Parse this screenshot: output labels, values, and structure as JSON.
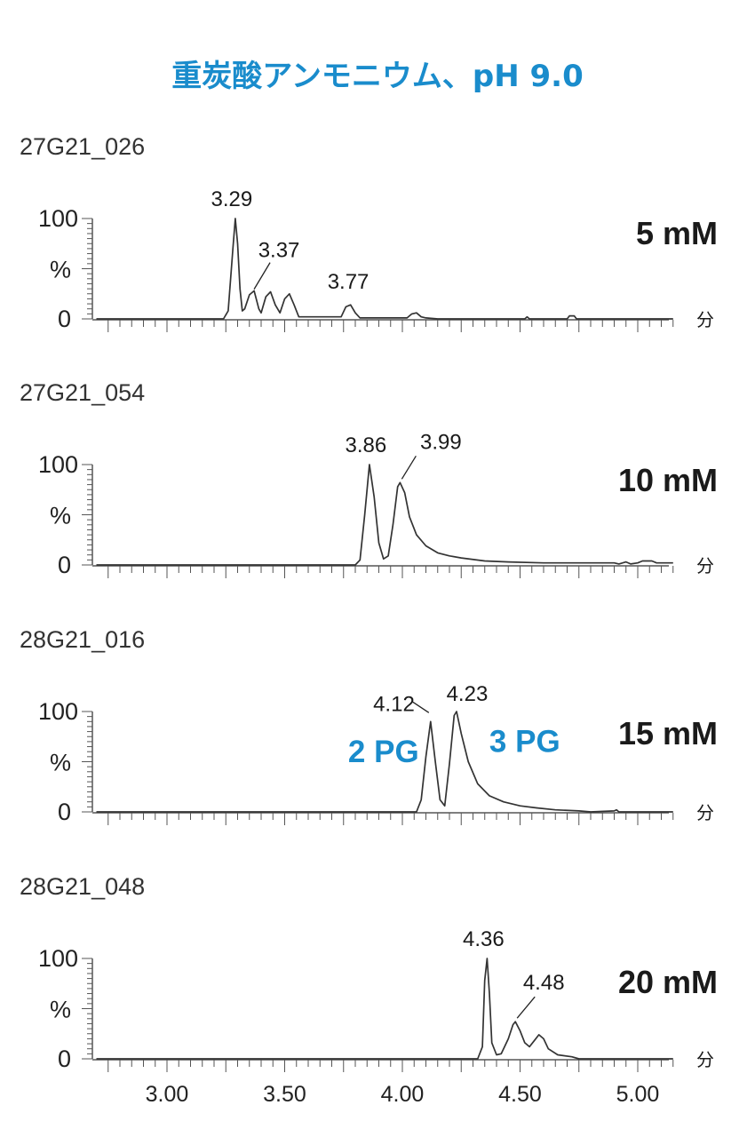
{
  "title": "重炭酸アンモニウム、pH 9.0",
  "chart_data": {
    "type": "line",
    "x_unit_label": "分",
    "x_ticks": [
      "3.00",
      "3.50",
      "4.00",
      "4.50",
      "5.00"
    ],
    "y_tick_labels": [
      "100",
      "%",
      "0"
    ],
    "xlim": [
      2.7,
      5.15
    ],
    "ylim": [
      0,
      100
    ],
    "panels": [
      {
        "sample_id": "27G21_026",
        "condition": "5 mM",
        "peak_labels": [
          {
            "text": "3.29",
            "x": 3.29,
            "y": 100
          },
          {
            "text": "3.37",
            "x": 3.37,
            "y": 26
          },
          {
            "text": "3.77",
            "x": 3.77,
            "y": 14
          }
        ],
        "annotations": [],
        "trace": [
          [
            2.7,
            0
          ],
          [
            3.24,
            0
          ],
          [
            3.26,
            8
          ],
          [
            3.28,
            70
          ],
          [
            3.29,
            100
          ],
          [
            3.3,
            75
          ],
          [
            3.31,
            30
          ],
          [
            3.32,
            8
          ],
          [
            3.33,
            10
          ],
          [
            3.35,
            24
          ],
          [
            3.37,
            28
          ],
          [
            3.39,
            10
          ],
          [
            3.4,
            6
          ],
          [
            3.42,
            22
          ],
          [
            3.44,
            27
          ],
          [
            3.46,
            14
          ],
          [
            3.48,
            6
          ],
          [
            3.5,
            20
          ],
          [
            3.52,
            25
          ],
          [
            3.54,
            14
          ],
          [
            3.56,
            2
          ],
          [
            3.74,
            2
          ],
          [
            3.76,
            12
          ],
          [
            3.78,
            14
          ],
          [
            3.8,
            6
          ],
          [
            3.82,
            1
          ],
          [
            4.02,
            1
          ],
          [
            4.04,
            5
          ],
          [
            4.06,
            6
          ],
          [
            4.08,
            2
          ],
          [
            4.1,
            1
          ],
          [
            4.15,
            0
          ],
          [
            4.52,
            0
          ],
          [
            4.53,
            2
          ],
          [
            4.54,
            0
          ],
          [
            4.7,
            0
          ],
          [
            4.71,
            3
          ],
          [
            4.73,
            3
          ],
          [
            4.74,
            0
          ],
          [
            5.15,
            0
          ]
        ]
      },
      {
        "sample_id": "27G21_054",
        "condition": "10 mM",
        "peak_labels": [
          {
            "text": "3.86",
            "x": 3.86,
            "y": 100
          },
          {
            "text": "3.99",
            "x": 3.99,
            "y": 82
          }
        ],
        "annotations": [],
        "trace": [
          [
            2.7,
            0
          ],
          [
            3.8,
            0
          ],
          [
            3.82,
            5
          ],
          [
            3.84,
            50
          ],
          [
            3.86,
            100
          ],
          [
            3.88,
            68
          ],
          [
            3.9,
            22
          ],
          [
            3.92,
            6
          ],
          [
            3.94,
            9
          ],
          [
            3.96,
            40
          ],
          [
            3.98,
            78
          ],
          [
            3.99,
            82
          ],
          [
            4.01,
            72
          ],
          [
            4.03,
            48
          ],
          [
            4.06,
            30
          ],
          [
            4.1,
            19
          ],
          [
            4.15,
            12
          ],
          [
            4.2,
            9
          ],
          [
            4.25,
            7
          ],
          [
            4.35,
            4
          ],
          [
            4.45,
            3
          ],
          [
            4.6,
            2
          ],
          [
            4.8,
            2
          ],
          [
            4.9,
            2
          ],
          [
            4.92,
            1
          ],
          [
            4.95,
            3
          ],
          [
            4.97,
            1
          ],
          [
            5.0,
            2
          ],
          [
            5.02,
            4
          ],
          [
            5.06,
            4
          ],
          [
            5.08,
            2
          ],
          [
            5.15,
            2
          ]
        ]
      },
      {
        "sample_id": "28G21_016",
        "condition": "15 mM",
        "peak_labels": [
          {
            "text": "4.12",
            "x": 4.12,
            "y": 90
          },
          {
            "text": "4.23",
            "x": 4.23,
            "y": 100
          }
        ],
        "annotations": [
          {
            "text": "2 PG",
            "x": 3.92,
            "y": 62
          },
          {
            "text": "3 PG",
            "x": 4.52,
            "y": 72
          }
        ],
        "trace": [
          [
            2.7,
            0
          ],
          [
            4.06,
            0
          ],
          [
            4.08,
            12
          ],
          [
            4.1,
            55
          ],
          [
            4.12,
            90
          ],
          [
            4.14,
            50
          ],
          [
            4.16,
            12
          ],
          [
            4.18,
            6
          ],
          [
            4.2,
            48
          ],
          [
            4.22,
            96
          ],
          [
            4.23,
            100
          ],
          [
            4.25,
            78
          ],
          [
            4.28,
            50
          ],
          [
            4.32,
            28
          ],
          [
            4.37,
            16
          ],
          [
            4.43,
            10
          ],
          [
            4.5,
            6
          ],
          [
            4.57,
            4
          ],
          [
            4.65,
            2
          ],
          [
            4.75,
            1
          ],
          [
            4.8,
            0
          ],
          [
            4.9,
            1
          ],
          [
            4.91,
            2
          ],
          [
            4.92,
            0
          ],
          [
            5.15,
            0
          ]
        ]
      },
      {
        "sample_id": "28G21_048",
        "condition": "20 mM",
        "peak_labels": [
          {
            "text": "4.36",
            "x": 4.36,
            "y": 100
          },
          {
            "text": "4.48",
            "x": 4.48,
            "y": 37
          }
        ],
        "annotations": [],
        "trace": [
          [
            2.7,
            0
          ],
          [
            4.32,
            0
          ],
          [
            4.34,
            12
          ],
          [
            4.35,
            78
          ],
          [
            4.36,
            100
          ],
          [
            4.37,
            65
          ],
          [
            4.38,
            16
          ],
          [
            4.4,
            4
          ],
          [
            4.42,
            5
          ],
          [
            4.45,
            20
          ],
          [
            4.47,
            34
          ],
          [
            4.48,
            37
          ],
          [
            4.5,
            28
          ],
          [
            4.52,
            16
          ],
          [
            4.54,
            12
          ],
          [
            4.56,
            18
          ],
          [
            4.58,
            24
          ],
          [
            4.6,
            20
          ],
          [
            4.62,
            10
          ],
          [
            4.66,
            4
          ],
          [
            4.72,
            2
          ],
          [
            4.75,
            0
          ],
          [
            5.15,
            0
          ]
        ]
      }
    ]
  }
}
